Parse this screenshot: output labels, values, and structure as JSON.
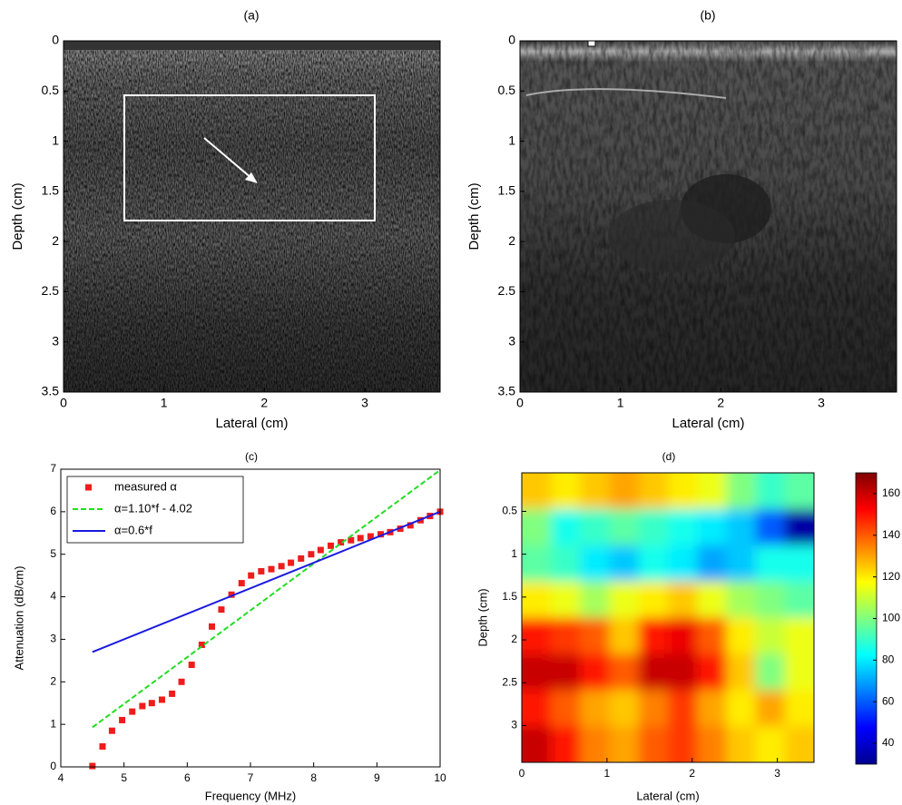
{
  "chart_data": [
    {
      "type": "image",
      "title": "(a)",
      "x_label": "Lateral (cm)",
      "y_label": "Depth (cm)",
      "xlim": [
        0,
        3.75
      ],
      "xticks": [
        0,
        1,
        2,
        3
      ],
      "ylim": [
        3.5,
        0
      ],
      "yticks": [
        0,
        0.5,
        1,
        1.5,
        2,
        2.5,
        3,
        3.5
      ]
    },
    {
      "type": "image",
      "title": "(b)",
      "x_label": "Lateral (cm)",
      "y_label": "Depth (cm)",
      "xlim": [
        0,
        3.75
      ],
      "xticks": [
        0,
        1,
        2,
        3
      ],
      "ylim": [
        3.5,
        0
      ],
      "yticks": [
        0,
        0.5,
        1,
        1.5,
        2,
        2.5,
        3,
        3.5
      ]
    },
    {
      "type": "scatter",
      "title": "(c)",
      "x_label": "Frequency (MHz)",
      "y_label": "Attenuation (dB/cm)",
      "xlim": [
        4,
        10
      ],
      "xticks": [
        4,
        5,
        6,
        7,
        8,
        9,
        10
      ],
      "ylim": [
        0,
        7
      ],
      "yticks": [
        0,
        1,
        2,
        3,
        4,
        5,
        6,
        7
      ],
      "legend": "upper left",
      "series": [
        {
          "name": "measured α",
          "color": "#ee1c1c",
          "kind": "marker",
          "x": [
            4.5,
            4.66,
            4.81,
            4.97,
            5.13,
            5.29,
            5.44,
            5.6,
            5.76,
            5.91,
            6.07,
            6.23,
            6.39,
            6.54,
            6.7,
            6.86,
            7.01,
            7.17,
            7.33,
            7.49,
            7.64,
            7.8,
            7.96,
            8.11,
            8.27,
            8.43,
            8.59,
            8.74,
            8.9,
            9.06,
            9.21,
            9.37,
            9.53,
            9.69,
            9.84,
            10.0
          ],
          "values": [
            0.02,
            0.48,
            0.85,
            1.1,
            1.3,
            1.43,
            1.5,
            1.58,
            1.72,
            2.0,
            2.4,
            2.87,
            3.3,
            3.7,
            4.05,
            4.32,
            4.5,
            4.6,
            4.65,
            4.72,
            4.8,
            4.9,
            5.0,
            5.1,
            5.2,
            5.28,
            5.33,
            5.38,
            5.42,
            5.47,
            5.52,
            5.6,
            5.68,
            5.8,
            5.9,
            6.0
          ]
        },
        {
          "name": "α=1.10*f - 4.02",
          "color": "#22dd22",
          "kind": "line",
          "dashed": true,
          "x": [
            4.5,
            10
          ],
          "values": [
            0.93,
            6.98
          ]
        },
        {
          "name": "α=0.6*f",
          "color": "#1a1adf",
          "kind": "line",
          "dashed": false,
          "x": [
            4.5,
            10
          ],
          "values": [
            2.7,
            6.0
          ]
        }
      ]
    },
    {
      "type": "heatmap",
      "title": "(d)",
      "x_label": "Lateral (cm)",
      "y_label": "Depth (cm)",
      "xlim": [
        0,
        3.43
      ],
      "xticks": [
        0,
        1,
        2,
        3
      ],
      "ylim": [
        3.43,
        0.05
      ],
      "yticks": [
        0.5,
        1,
        1.5,
        2,
        2.5,
        3
      ],
      "clim": [
        30,
        170
      ],
      "colorbar_ticks": [
        40,
        60,
        80,
        100,
        120,
        140,
        160
      ],
      "values": [
        [
          125,
          120,
          125,
          130,
          125,
          120,
          115,
          100,
          90,
          95
        ],
        [
          100,
          85,
          90,
          95,
          90,
          85,
          80,
          75,
          60,
          35
        ],
        [
          95,
          90,
          80,
          75,
          85,
          80,
          70,
          75,
          85,
          85
        ],
        [
          120,
          115,
          105,
          115,
          120,
          125,
          115,
          105,
          100,
          95
        ],
        [
          150,
          145,
          140,
          125,
          150,
          155,
          140,
          120,
          110,
          115
        ],
        [
          160,
          160,
          150,
          140,
          160,
          160,
          150,
          125,
          100,
          115
        ],
        [
          150,
          140,
          130,
          125,
          135,
          145,
          130,
          120,
          130,
          120
        ],
        [
          160,
          150,
          135,
          130,
          140,
          145,
          135,
          125,
          120,
          125
        ]
      ]
    }
  ]
}
